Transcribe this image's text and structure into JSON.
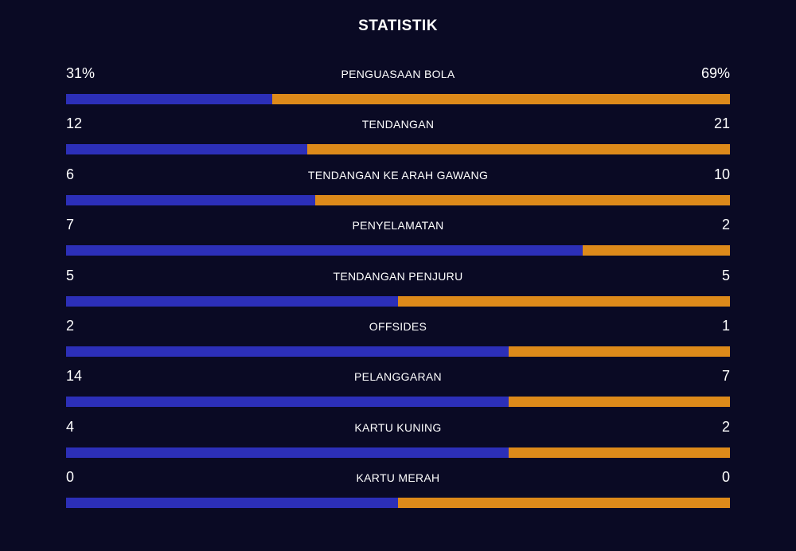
{
  "title": "STATISTIK",
  "colors": {
    "background": "#0a0a24",
    "home": "#2c2fb8",
    "away": "#dd8a1a"
  },
  "stats": [
    {
      "label": "PENGUASAAN BOLA",
      "home_display": "31%",
      "away_display": "69%",
      "home": 31,
      "away": 69
    },
    {
      "label": "TENDANGAN",
      "home_display": "12",
      "away_display": "21",
      "home": 12,
      "away": 21
    },
    {
      "label": "TENDANGAN KE ARAH GAWANG",
      "home_display": "6",
      "away_display": "10",
      "home": 6,
      "away": 10
    },
    {
      "label": "PENYELAMATAN",
      "home_display": "7",
      "away_display": "2",
      "home": 7,
      "away": 2
    },
    {
      "label": "TENDANGAN PENJURU",
      "home_display": "5",
      "away_display": "5",
      "home": 5,
      "away": 5
    },
    {
      "label": "OFFSIDES",
      "home_display": "2",
      "away_display": "1",
      "home": 2,
      "away": 1
    },
    {
      "label": "PELANGGARAN",
      "home_display": "14",
      "away_display": "7",
      "home": 14,
      "away": 7
    },
    {
      "label": "KARTU KUNING",
      "home_display": "4",
      "away_display": "2",
      "home": 4,
      "away": 2
    },
    {
      "label": "KARTU MERAH",
      "home_display": "0",
      "away_display": "0",
      "home": 0,
      "away": 0
    }
  ]
}
